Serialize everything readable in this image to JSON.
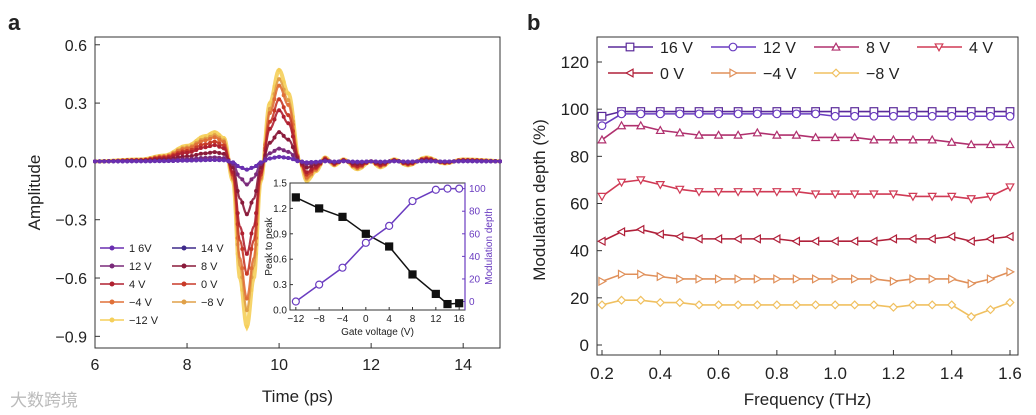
{
  "watermark": "大数跨境",
  "chart_data": [
    {
      "panel": "a",
      "type": "line",
      "xlabel": "Time (ps)",
      "ylabel": "Amplitude",
      "xlim": [
        6,
        15
      ],
      "ylim": [
        -0.9,
        0.6
      ],
      "xticks": [
        6,
        8,
        10,
        12,
        14
      ],
      "yticks": [
        0.6,
        0.3,
        0.0,
        -0.3,
        -0.6,
        -0.9
      ],
      "ytick_labels": [
        "0.6",
        "0.3",
        "0.0",
        "−0.3",
        "−0.6",
        "−0.9"
      ],
      "legend_position": "bottom-left",
      "reference_waveform": {
        "x": [
          6,
          7,
          7.5,
          8,
          8.4,
          8.6,
          8.8,
          9.0,
          9.15,
          9.3,
          9.45,
          9.6,
          9.8,
          10.0,
          10.2,
          10.45,
          10.6,
          10.8,
          11.0,
          11.2,
          11.4,
          11.7,
          12.0,
          12.2,
          12.5,
          12.8,
          13.2,
          13.6,
          14,
          15
        ],
        "y": [
          0,
          0.01,
          0.03,
          0.08,
          0.13,
          0.15,
          0.12,
          -0.1,
          -0.6,
          -0.85,
          -0.6,
          -0.1,
          0.3,
          0.47,
          0.35,
          0.0,
          -0.1,
          -0.05,
          0.02,
          -0.02,
          0.01,
          -0.04,
          0.0,
          -0.03,
          0.01,
          -0.02,
          0.02,
          -0.01,
          0.01,
          0
        ]
      },
      "series": [
        {
          "name": "1 6V",
          "color": "#6a2fb0",
          "scale": 0.05
        },
        {
          "name": "14 V",
          "color": "#3e2a8a",
          "scale": 0.05
        },
        {
          "name": "12 V",
          "color": "#7a2a7a",
          "scale": 0.14
        },
        {
          "name": "8 V",
          "color": "#8a1a3a",
          "scale": 0.32
        },
        {
          "name": "4 V",
          "color": "#b02030",
          "scale": 0.56
        },
        {
          "name": "0 V",
          "color": "#c83a28",
          "scale": 0.68
        },
        {
          "name": "−4 V",
          "color": "#e07038",
          "scale": 0.83
        },
        {
          "name": "−8 V",
          "color": "#e0a048",
          "scale": 0.9
        },
        {
          "name": "−12 V",
          "color": "#f5cf5a",
          "scale": 1.0
        }
      ]
    },
    {
      "panel": "a-inset",
      "type": "line",
      "xlabel": "Gate voltage (V)",
      "ylabel": "Peak to peak",
      "y2label": "Modulation depth",
      "xlim": [
        -13,
        17
      ],
      "ylim": [
        0,
        1.5
      ],
      "y2lim": [
        -7.5,
        105
      ],
      "xticks": [
        -12,
        -8,
        -4,
        0,
        4,
        8,
        12,
        16
      ],
      "xtick_labels": [
        "−12",
        "−8",
        "−4",
        "0",
        "4",
        "8",
        "12",
        "16"
      ],
      "yticks": [
        "0.0",
        "0.3",
        "0.6",
        "0.9",
        "1.2",
        "1.5"
      ],
      "y2ticks": [
        0,
        20,
        40,
        60,
        80,
        100
      ],
      "x": [
        -12,
        -8,
        -4,
        0,
        4,
        8,
        12,
        14,
        16
      ],
      "peak_to_peak": [
        1.33,
        1.2,
        1.1,
        0.9,
        0.75,
        0.42,
        0.19,
        0.07,
        0.08
      ],
      "modulation_depth": [
        0,
        15,
        30,
        52,
        67,
        89,
        99,
        100,
        100
      ]
    },
    {
      "panel": "b",
      "type": "line",
      "xlabel": "Frequency (THz)",
      "ylabel": "Modulation depth (%)",
      "xlim": [
        0.2,
        1.6
      ],
      "ylim": [
        0,
        130
      ],
      "xticks": [
        "0.2",
        "0.4",
        "0.6",
        "0.8",
        "1.0",
        "1.2",
        "1.4",
        "1.6"
      ],
      "yticks": [
        0,
        20,
        40,
        60,
        80,
        100,
        120
      ],
      "legend_position": "top",
      "x": [
        0.2,
        0.267,
        0.333,
        0.4,
        0.467,
        0.533,
        0.6,
        0.667,
        0.733,
        0.8,
        0.867,
        0.933,
        1.0,
        1.067,
        1.133,
        1.2,
        1.267,
        1.333,
        1.4,
        1.467,
        1.533,
        1.6
      ],
      "series": [
        {
          "name": "16 V",
          "color": "#5a2a9a",
          "marker": "square",
          "values": [
            97,
            99,
            99,
            99,
            99,
            99,
            99,
            99,
            99,
            99,
            99,
            99,
            99,
            99,
            99,
            99,
            99,
            99,
            99,
            99,
            99,
            99
          ]
        },
        {
          "name": "12 V",
          "color": "#6a3cc0",
          "marker": "circle",
          "values": [
            93,
            98,
            98,
            98,
            98,
            98,
            98,
            98,
            98,
            98,
            98,
            98,
            97,
            97,
            97,
            97,
            97,
            97,
            97,
            97,
            97,
            97
          ]
        },
        {
          "name": "8 V",
          "color": "#b0306e",
          "marker": "triangle-up",
          "values": [
            87,
            93,
            93,
            91,
            90,
            89,
            89,
            89,
            90,
            89,
            89,
            88,
            88,
            88,
            87,
            87,
            87,
            87,
            86,
            85,
            85,
            85
          ]
        },
        {
          "name": "4 V",
          "color": "#d03a55",
          "marker": "triangle-down",
          "values": [
            63,
            69,
            70,
            68,
            66,
            65,
            65,
            65,
            65,
            65,
            65,
            64,
            64,
            64,
            64,
            64,
            63,
            63,
            63,
            62,
            63,
            67
          ]
        },
        {
          "name": "0 V",
          "color": "#b0203a",
          "marker": "triangle-left",
          "values": [
            44,
            48,
            49,
            47,
            46,
            45,
            45,
            45,
            45,
            45,
            44,
            44,
            44,
            44,
            44,
            45,
            45,
            45,
            46,
            44,
            45,
            46
          ]
        },
        {
          "name": "−4 V",
          "color": "#e0905a",
          "marker": "triangle-right",
          "values": [
            27,
            30,
            30,
            29,
            28,
            28,
            28,
            28,
            28,
            28,
            28,
            28,
            28,
            28,
            28,
            27,
            28,
            28,
            28,
            26,
            28,
            31
          ]
        },
        {
          "name": "−8 V",
          "color": "#f0c060",
          "marker": "diamond",
          "values": [
            17,
            19,
            19,
            18,
            18,
            17,
            17,
            17,
            17,
            17,
            17,
            17,
            17,
            17,
            17,
            16,
            17,
            17,
            17,
            12,
            15,
            18
          ]
        }
      ]
    }
  ]
}
